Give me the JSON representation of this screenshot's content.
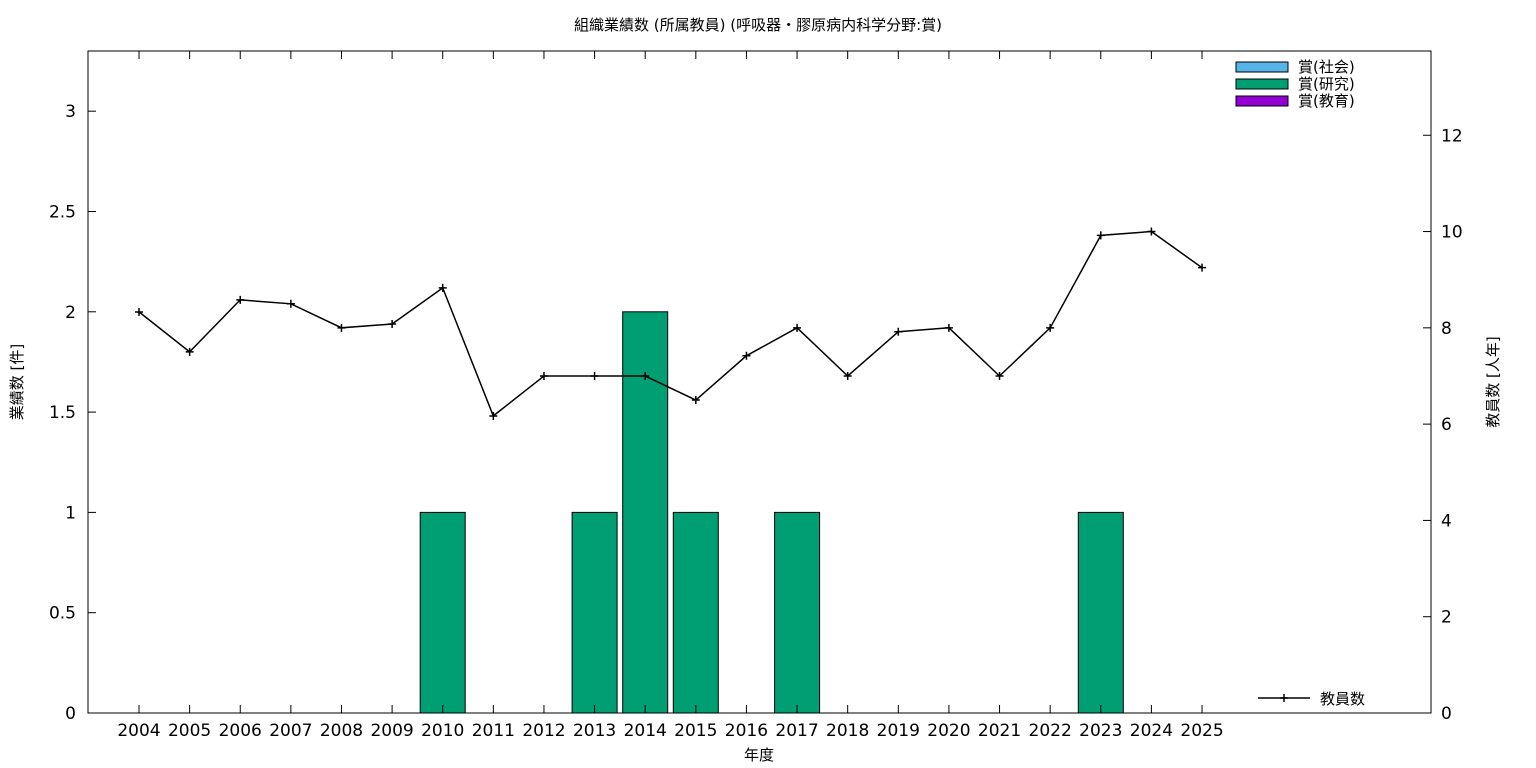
{
  "chart_data": {
    "type": "bar",
    "title": "組織業績数 (所属教員) (呼吸器・膠原病内科学分野:賞)",
    "xlabel": "年度",
    "ylabel": "業績数 [件]",
    "y2label": "教員数 [人年]",
    "ylim": [
      0,
      3.3
    ],
    "y2lim": [
      0,
      13.75
    ],
    "yticks": [
      "0",
      "0.5",
      "1",
      "1.5",
      "2",
      "2.5",
      "3"
    ],
    "y2ticks": [
      "0",
      "2",
      "4",
      "6",
      "8",
      "10",
      "12"
    ],
    "grid": false,
    "categories": [
      "2004",
      "2005",
      "2006",
      "2007",
      "2008",
      "2009",
      "2010",
      "2011",
      "2012",
      "2013",
      "2014",
      "2015",
      "2016",
      "2017",
      "2018",
      "2019",
      "2020",
      "2021",
      "2022",
      "2023",
      "2024",
      "2025"
    ],
    "series": [
      {
        "name": "賞(社会)",
        "color": "#56b4e9",
        "values": [
          0,
          0,
          0,
          0,
          0,
          0,
          0,
          0,
          0,
          0,
          0,
          0,
          0,
          0,
          0,
          0,
          0,
          0,
          0,
          0,
          0,
          0
        ]
      },
      {
        "name": "賞(研究)",
        "color": "#009e73",
        "values": [
          0,
          0,
          0,
          0,
          0,
          0,
          1,
          0,
          0,
          1,
          2,
          1,
          0,
          1,
          0,
          0,
          0,
          0,
          0,
          1,
          0,
          0
        ]
      },
      {
        "name": "賞(教育)",
        "color": "#9400d3",
        "values": [
          0,
          0,
          0,
          0,
          0,
          0,
          0,
          0,
          0,
          0,
          0,
          0,
          0,
          0,
          0,
          0,
          0,
          0,
          0,
          0,
          0,
          0
        ]
      }
    ],
    "line_series": {
      "name": "教員数",
      "color": "#000000",
      "axis": "y2",
      "values": [
        8.33,
        7.5,
        8.58,
        8.5,
        8.0,
        8.08,
        8.83,
        6.17,
        7.0,
        7.0,
        7.0,
        6.5,
        7.42,
        8.0,
        7.0,
        7.92,
        8.0,
        7.0,
        8.0,
        9.92,
        10.0,
        9.25
      ]
    },
    "legend_bars_position": "top-right",
    "legend_line_position": "bottom-right"
  }
}
